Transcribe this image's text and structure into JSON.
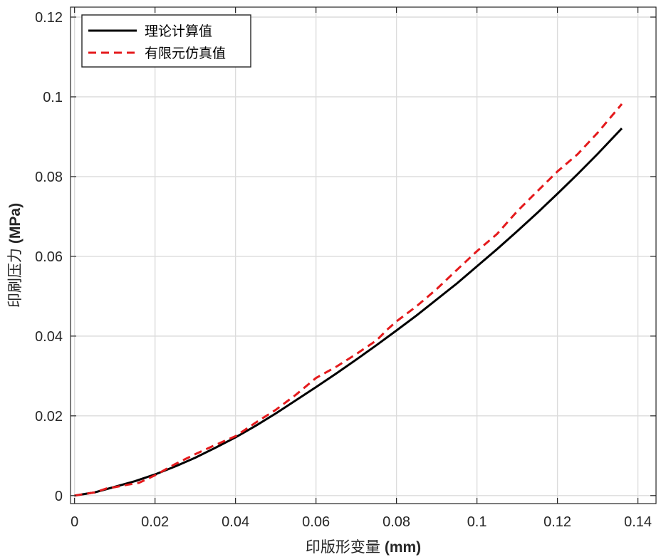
{
  "chart_data": {
    "type": "line",
    "xlabel_prefix": "印版形变量",
    "xlabel_unit": "(mm)",
    "ylabel_prefix": "印刷压力",
    "ylabel_unit": "(MPa)",
    "xlim": [
      -0.001,
      0.1445
    ],
    "ylim": [
      -0.002,
      0.1225
    ],
    "xticks": [
      0,
      0.02,
      0.04,
      0.06,
      0.08,
      0.1,
      0.12,
      0.14
    ],
    "xtick_labels": [
      "0",
      "0.02",
      "0.04",
      "0.06",
      "0.08",
      "0.1",
      "0.12",
      "0.14"
    ],
    "yticks": [
      0,
      0.02,
      0.04,
      0.06,
      0.08,
      0.1,
      0.12
    ],
    "ytick_labels": [
      "0",
      "0.02",
      "0.04",
      "0.06",
      "0.08",
      "0.1",
      "0.12"
    ],
    "grid": true,
    "legend_position": "top-left",
    "series": [
      {
        "name": "理论计算值",
        "color": "#000000",
        "style": "solid",
        "x": [
          0,
          0.005,
          0.01,
          0.015,
          0.02,
          0.025,
          0.03,
          0.035,
          0.04,
          0.045,
          0.05,
          0.055,
          0.06,
          0.065,
          0.07,
          0.075,
          0.08,
          0.085,
          0.09,
          0.095,
          0.1,
          0.105,
          0.11,
          0.115,
          0.12,
          0.125,
          0.13,
          0.136
        ],
        "y": [
          0,
          0.0008,
          0.0022,
          0.0036,
          0.0053,
          0.0073,
          0.0095,
          0.012,
          0.0146,
          0.0175,
          0.0206,
          0.0239,
          0.0272,
          0.0306,
          0.0341,
          0.0377,
          0.0414,
          0.0452,
          0.0492,
          0.0532,
          0.0575,
          0.0618,
          0.0663,
          0.0709,
          0.0757,
          0.0806,
          0.0857,
          0.0921
        ]
      },
      {
        "name": "有限元仿真值",
        "color": "#e41a1c",
        "style": "dashed",
        "x": [
          0,
          0.005,
          0.008,
          0.01,
          0.013,
          0.016,
          0.02,
          0.025,
          0.03,
          0.035,
          0.04,
          0.045,
          0.05,
          0.055,
          0.06,
          0.065,
          0.07,
          0.075,
          0.078,
          0.08,
          0.085,
          0.09,
          0.095,
          0.1,
          0.105,
          0.11,
          0.115,
          0.12,
          0.125,
          0.13,
          0.136
        ],
        "y": [
          0,
          0.0008,
          0.0018,
          0.0021,
          0.0027,
          0.0032,
          0.0051,
          0.0079,
          0.0104,
          0.0127,
          0.0149,
          0.0183,
          0.0215,
          0.0253,
          0.0295,
          0.0323,
          0.0355,
          0.0389,
          0.0419,
          0.0437,
          0.0475,
          0.0518,
          0.0566,
          0.0613,
          0.0656,
          0.0713,
          0.0763,
          0.0813,
          0.0856,
          0.091,
          0.0982
        ]
      }
    ]
  }
}
